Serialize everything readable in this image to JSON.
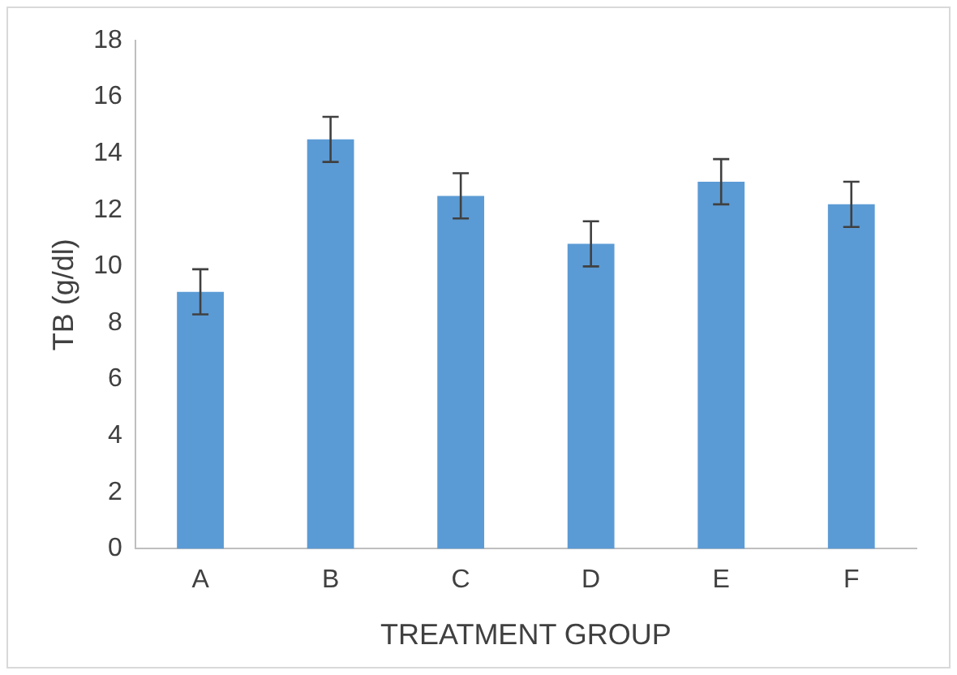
{
  "chart_data": {
    "type": "bar",
    "xlabel": "TREATMENT GROUP",
    "ylabel": "TB (g/dl)",
    "categories": [
      "A",
      "B",
      "C",
      "D",
      "E",
      "F"
    ],
    "values": [
      9.1,
      14.5,
      12.5,
      10.8,
      13.0,
      12.2
    ],
    "errors": [
      0.8,
      0.8,
      0.8,
      0.8,
      0.8,
      0.8
    ],
    "color": "#5b9bd5",
    "ylim": [
      0,
      18
    ],
    "yticks": [
      0,
      2,
      4,
      6,
      8,
      10,
      12,
      14,
      16,
      18
    ],
    "grid": false,
    "legend": false
  }
}
